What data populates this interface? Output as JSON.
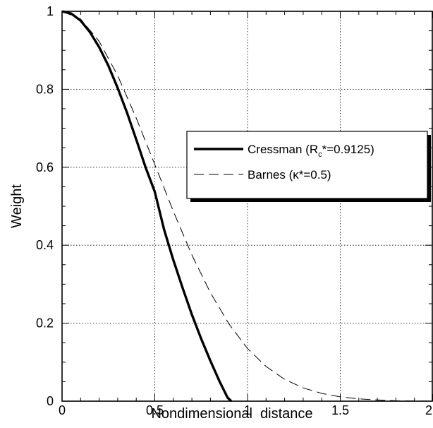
{
  "chart_data": {
    "type": "line",
    "title": "",
    "xlabel": "Nondimensional  distance",
    "ylabel": "Weight",
    "xlim": [
      0,
      2
    ],
    "ylim": [
      0,
      1
    ],
    "x_ticks": [
      0,
      0.5,
      1,
      1.5,
      2
    ],
    "x_tick_labels": [
      "0",
      "0.5",
      "1",
      "1.5",
      "2"
    ],
    "y_ticks": [
      0,
      0.2,
      0.4,
      0.6,
      0.8,
      1
    ],
    "y_tick_labels": [
      "0",
      "0.2",
      "0.4",
      "0.6",
      "0.8",
      "1"
    ],
    "grid": true,
    "legend_position": "right-middle",
    "series": [
      {
        "name": "Cressman (Rc*=0.9125)",
        "legend_label": {
          "main": "Cressman (R",
          "sub": "c",
          "rest": "*=0.9125)"
        },
        "style": "solid-thick",
        "color": "#000000",
        "points": [
          [
            0,
            1
          ],
          [
            0.05,
            0.994
          ],
          [
            0.1,
            0.976
          ],
          [
            0.15,
            0.947
          ],
          [
            0.2,
            0.908
          ],
          [
            0.25,
            0.86
          ],
          [
            0.3,
            0.803
          ],
          [
            0.35,
            0.74
          ],
          [
            0.4,
            0.671
          ],
          [
            0.45,
            0.6
          ],
          [
            0.5,
            0.537
          ],
          [
            0.55,
            0.44
          ],
          [
            0.6,
            0.362
          ],
          [
            0.65,
            0.29
          ],
          [
            0.7,
            0.222
          ],
          [
            0.75,
            0.16
          ],
          [
            0.8,
            0.103
          ],
          [
            0.85,
            0.05
          ],
          [
            0.8925,
            0.009
          ],
          [
            0.9125,
            0
          ]
        ]
      },
      {
        "name": "Barnes (κ*=0.5)",
        "legend_label": {
          "main": "Barnes (κ*=0.5)"
        },
        "style": "dashed-thin",
        "color": "#000000",
        "points": [
          [
            0,
            1
          ],
          [
            0.1,
            0.98
          ],
          [
            0.2,
            0.923
          ],
          [
            0.3,
            0.835
          ],
          [
            0.4,
            0.726
          ],
          [
            0.5,
            0.607
          ],
          [
            0.6,
            0.487
          ],
          [
            0.7,
            0.375
          ],
          [
            0.8,
            0.278
          ],
          [
            0.9,
            0.198
          ],
          [
            1.0,
            0.135
          ],
          [
            1.1,
            0.089
          ],
          [
            1.2,
            0.056
          ],
          [
            1.3,
            0.034
          ],
          [
            1.4,
            0.02
          ],
          [
            1.5,
            0.011
          ],
          [
            1.6,
            0.006
          ],
          [
            1.7,
            0.003
          ],
          [
            1.8,
            0.001
          ],
          [
            1.9,
            0.0005
          ],
          [
            2.0,
            0.0002
          ]
        ]
      }
    ]
  }
}
